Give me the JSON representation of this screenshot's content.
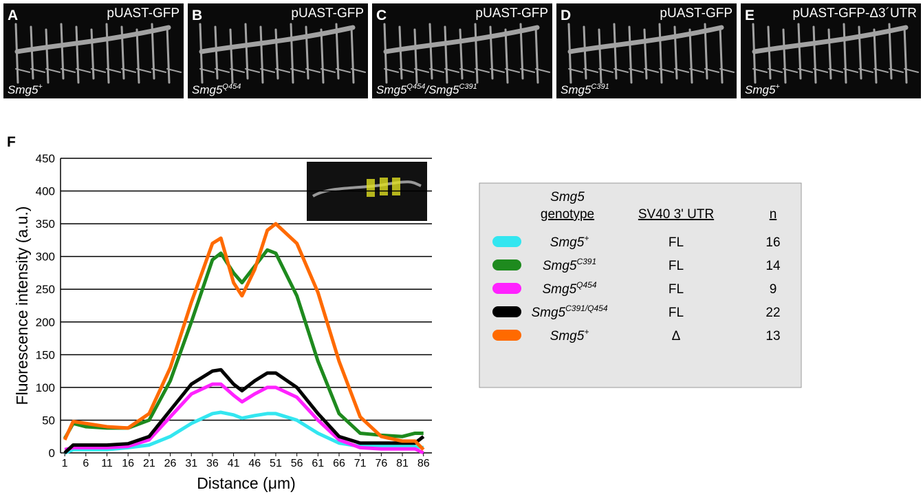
{
  "panels": [
    {
      "letter": "A",
      "construct": "pUAST-GFP",
      "genotype": "Smg5",
      "sup": "+"
    },
    {
      "letter": "B",
      "construct": "pUAST-GFP",
      "genotype": "Smg5",
      "sup": "Q454"
    },
    {
      "letter": "C",
      "construct": "pUAST-GFP",
      "genotype": "Smg5",
      "sup": "Q454",
      "genotype2": "/Smg5",
      "sup2": "C391"
    },
    {
      "letter": "D",
      "construct": "pUAST-GFP",
      "genotype": "Smg5",
      "sup": "C391"
    },
    {
      "letter": "E",
      "construct": "pUAST-GFP-Δ3´UTR",
      "genotype": "Smg5",
      "sup": "+"
    }
  ],
  "chart_data": {
    "type": "line",
    "panel_label": "F",
    "x_label": "Distance (μm)",
    "y_label": "Fluorescence intensity (a.u.)",
    "x": [
      1,
      3,
      6,
      11,
      16,
      21,
      26,
      31,
      36,
      38,
      41,
      43,
      46,
      49,
      51,
      56,
      61,
      66,
      71,
      76,
      81,
      84,
      86
    ],
    "xlim": [
      0,
      88
    ],
    "xticks": [
      1,
      6,
      11,
      16,
      21,
      26,
      31,
      36,
      41,
      46,
      51,
      56,
      61,
      66,
      71,
      76,
      81,
      86
    ],
    "ylim": [
      0,
      450
    ],
    "yticks": [
      0,
      50,
      100,
      150,
      200,
      250,
      300,
      350,
      400,
      450
    ],
    "grid": true,
    "legend_headers": {
      "genotype": "Smg5",
      "genotype2": "genotype",
      "utr": "SV40 3' UTR",
      "n": "n"
    },
    "series": [
      {
        "name": "Smg5",
        "sup": "+",
        "utr": "FL",
        "n": 16,
        "color": "#33e6f0",
        "values": [
          0,
          5,
          5,
          5,
          8,
          12,
          25,
          45,
          60,
          62,
          58,
          53,
          57,
          60,
          60,
          50,
          30,
          15,
          10,
          10,
          10,
          10,
          8
        ]
      },
      {
        "name": "Smg5",
        "sup": "C391",
        "utr": "FL",
        "n": 14,
        "color": "#1e8a1e",
        "values": [
          22,
          45,
          40,
          38,
          38,
          50,
          110,
          200,
          295,
          305,
          275,
          260,
          285,
          310,
          305,
          240,
          140,
          60,
          30,
          27,
          25,
          30,
          30
        ]
      },
      {
        "name": "Smg5",
        "sup": "Q454",
        "utr": "FL",
        "n": 9,
        "color": "#ff22ff",
        "values": [
          5,
          8,
          8,
          8,
          10,
          20,
          55,
          90,
          105,
          105,
          88,
          78,
          90,
          100,
          100,
          85,
          50,
          20,
          8,
          6,
          6,
          6,
          0
        ]
      },
      {
        "name": "Smg5",
        "sup": "C391/Q454",
        "utr": "FL",
        "n": 22,
        "color": "#000000",
        "values": [
          0,
          12,
          12,
          12,
          14,
          25,
          65,
          105,
          125,
          127,
          105,
          95,
          110,
          122,
          122,
          100,
          60,
          25,
          15,
          15,
          15,
          15,
          25
        ]
      },
      {
        "name": "Smg5",
        "sup": "+",
        "utr": "Δ",
        "n": 13,
        "color": "#ff6a00",
        "values": [
          20,
          48,
          45,
          40,
          38,
          60,
          130,
          230,
          320,
          328,
          260,
          240,
          280,
          340,
          350,
          320,
          245,
          140,
          55,
          25,
          18,
          18,
          5
        ]
      }
    ]
  }
}
